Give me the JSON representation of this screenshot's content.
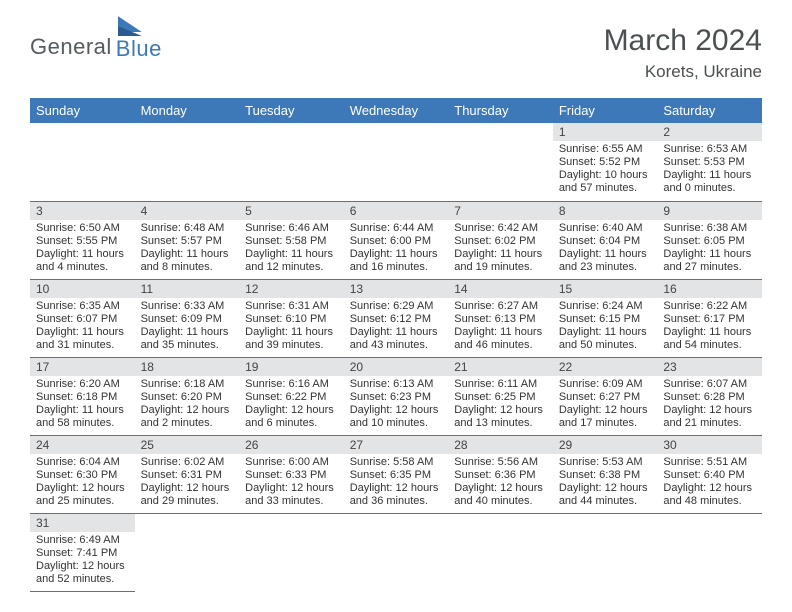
{
  "brand": {
    "part1": "General",
    "part2": "Blue"
  },
  "title": "March 2024",
  "location": "Korets, Ukraine",
  "colors": {
    "header_bg": "#3d78b8",
    "header_text": "#ffffff",
    "daynum_bg": "#e3e4e5",
    "border": "#3d78b8",
    "body_text": "#333333",
    "title_text": "#4a4f52"
  },
  "weekdays": [
    "Sunday",
    "Monday",
    "Tuesday",
    "Wednesday",
    "Thursday",
    "Friday",
    "Saturday"
  ],
  "weeks": [
    [
      null,
      null,
      null,
      null,
      null,
      {
        "n": "1",
        "sr": "Sunrise: 6:55 AM",
        "ss": "Sunset: 5:52 PM",
        "dl": "Daylight: 10 hours and 57 minutes."
      },
      {
        "n": "2",
        "sr": "Sunrise: 6:53 AM",
        "ss": "Sunset: 5:53 PM",
        "dl": "Daylight: 11 hours and 0 minutes."
      }
    ],
    [
      {
        "n": "3",
        "sr": "Sunrise: 6:50 AM",
        "ss": "Sunset: 5:55 PM",
        "dl": "Daylight: 11 hours and 4 minutes."
      },
      {
        "n": "4",
        "sr": "Sunrise: 6:48 AM",
        "ss": "Sunset: 5:57 PM",
        "dl": "Daylight: 11 hours and 8 minutes."
      },
      {
        "n": "5",
        "sr": "Sunrise: 6:46 AM",
        "ss": "Sunset: 5:58 PM",
        "dl": "Daylight: 11 hours and 12 minutes."
      },
      {
        "n": "6",
        "sr": "Sunrise: 6:44 AM",
        "ss": "Sunset: 6:00 PM",
        "dl": "Daylight: 11 hours and 16 minutes."
      },
      {
        "n": "7",
        "sr": "Sunrise: 6:42 AM",
        "ss": "Sunset: 6:02 PM",
        "dl": "Daylight: 11 hours and 19 minutes."
      },
      {
        "n": "8",
        "sr": "Sunrise: 6:40 AM",
        "ss": "Sunset: 6:04 PM",
        "dl": "Daylight: 11 hours and 23 minutes."
      },
      {
        "n": "9",
        "sr": "Sunrise: 6:38 AM",
        "ss": "Sunset: 6:05 PM",
        "dl": "Daylight: 11 hours and 27 minutes."
      }
    ],
    [
      {
        "n": "10",
        "sr": "Sunrise: 6:35 AM",
        "ss": "Sunset: 6:07 PM",
        "dl": "Daylight: 11 hours and 31 minutes."
      },
      {
        "n": "11",
        "sr": "Sunrise: 6:33 AM",
        "ss": "Sunset: 6:09 PM",
        "dl": "Daylight: 11 hours and 35 minutes."
      },
      {
        "n": "12",
        "sr": "Sunrise: 6:31 AM",
        "ss": "Sunset: 6:10 PM",
        "dl": "Daylight: 11 hours and 39 minutes."
      },
      {
        "n": "13",
        "sr": "Sunrise: 6:29 AM",
        "ss": "Sunset: 6:12 PM",
        "dl": "Daylight: 11 hours and 43 minutes."
      },
      {
        "n": "14",
        "sr": "Sunrise: 6:27 AM",
        "ss": "Sunset: 6:13 PM",
        "dl": "Daylight: 11 hours and 46 minutes."
      },
      {
        "n": "15",
        "sr": "Sunrise: 6:24 AM",
        "ss": "Sunset: 6:15 PM",
        "dl": "Daylight: 11 hours and 50 minutes."
      },
      {
        "n": "16",
        "sr": "Sunrise: 6:22 AM",
        "ss": "Sunset: 6:17 PM",
        "dl": "Daylight: 11 hours and 54 minutes."
      }
    ],
    [
      {
        "n": "17",
        "sr": "Sunrise: 6:20 AM",
        "ss": "Sunset: 6:18 PM",
        "dl": "Daylight: 11 hours and 58 minutes."
      },
      {
        "n": "18",
        "sr": "Sunrise: 6:18 AM",
        "ss": "Sunset: 6:20 PM",
        "dl": "Daylight: 12 hours and 2 minutes."
      },
      {
        "n": "19",
        "sr": "Sunrise: 6:16 AM",
        "ss": "Sunset: 6:22 PM",
        "dl": "Daylight: 12 hours and 6 minutes."
      },
      {
        "n": "20",
        "sr": "Sunrise: 6:13 AM",
        "ss": "Sunset: 6:23 PM",
        "dl": "Daylight: 12 hours and 10 minutes."
      },
      {
        "n": "21",
        "sr": "Sunrise: 6:11 AM",
        "ss": "Sunset: 6:25 PM",
        "dl": "Daylight: 12 hours and 13 minutes."
      },
      {
        "n": "22",
        "sr": "Sunrise: 6:09 AM",
        "ss": "Sunset: 6:27 PM",
        "dl": "Daylight: 12 hours and 17 minutes."
      },
      {
        "n": "23",
        "sr": "Sunrise: 6:07 AM",
        "ss": "Sunset: 6:28 PM",
        "dl": "Daylight: 12 hours and 21 minutes."
      }
    ],
    [
      {
        "n": "24",
        "sr": "Sunrise: 6:04 AM",
        "ss": "Sunset: 6:30 PM",
        "dl": "Daylight: 12 hours and 25 minutes."
      },
      {
        "n": "25",
        "sr": "Sunrise: 6:02 AM",
        "ss": "Sunset: 6:31 PM",
        "dl": "Daylight: 12 hours and 29 minutes."
      },
      {
        "n": "26",
        "sr": "Sunrise: 6:00 AM",
        "ss": "Sunset: 6:33 PM",
        "dl": "Daylight: 12 hours and 33 minutes."
      },
      {
        "n": "27",
        "sr": "Sunrise: 5:58 AM",
        "ss": "Sunset: 6:35 PM",
        "dl": "Daylight: 12 hours and 36 minutes."
      },
      {
        "n": "28",
        "sr": "Sunrise: 5:56 AM",
        "ss": "Sunset: 6:36 PM",
        "dl": "Daylight: 12 hours and 40 minutes."
      },
      {
        "n": "29",
        "sr": "Sunrise: 5:53 AM",
        "ss": "Sunset: 6:38 PM",
        "dl": "Daylight: 12 hours and 44 minutes."
      },
      {
        "n": "30",
        "sr": "Sunrise: 5:51 AM",
        "ss": "Sunset: 6:40 PM",
        "dl": "Daylight: 12 hours and 48 minutes."
      }
    ],
    [
      {
        "n": "31",
        "sr": "Sunrise: 6:49 AM",
        "ss": "Sunset: 7:41 PM",
        "dl": "Daylight: 12 hours and 52 minutes."
      },
      null,
      null,
      null,
      null,
      null,
      null
    ]
  ]
}
